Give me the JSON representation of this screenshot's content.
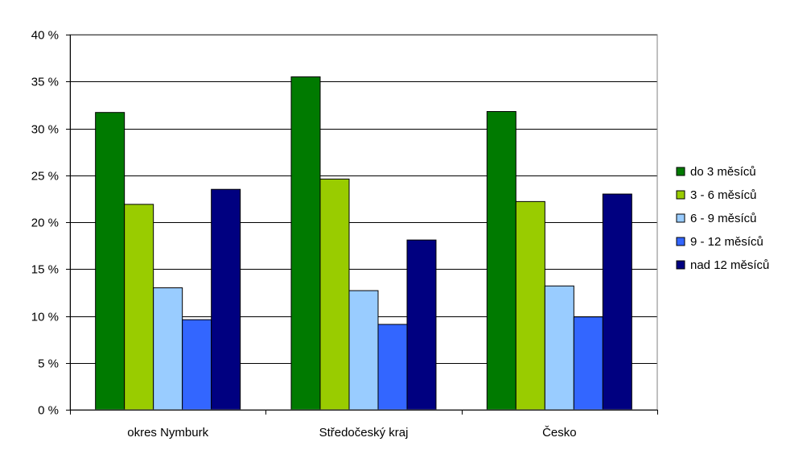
{
  "chart_data": {
    "type": "bar",
    "title": "",
    "xlabel": "",
    "ylabel": "",
    "categories": [
      "okres Nymburk",
      "Středočeský kraj",
      "Česko"
    ],
    "series": [
      {
        "name": "do 3 měsíců",
        "color": "#007a00",
        "values": [
          31.7,
          35.5,
          31.8
        ]
      },
      {
        "name": "3 - 6 měsíců",
        "color": "#99cc00",
        "values": [
          21.9,
          24.6,
          22.2
        ]
      },
      {
        "name": "6 - 9 měsíců",
        "color": "#99ccff",
        "values": [
          13.0,
          12.7,
          13.2
        ]
      },
      {
        "name": "9 - 12 měsíců",
        "color": "#3366ff",
        "values": [
          9.6,
          9.1,
          9.9
        ]
      },
      {
        "name": "nad 12 měsíců",
        "color": "#000080",
        "values": [
          23.5,
          18.1,
          23.0
        ]
      }
    ],
    "ylim": [
      0,
      40
    ],
    "yticks": [
      0,
      5,
      10,
      15,
      20,
      25,
      30,
      35,
      40
    ],
    "ytick_labels": [
      "0 %",
      "5 %",
      "10 %",
      "15 %",
      "20 %",
      "25 %",
      "30 %",
      "35 %",
      "40 %"
    ],
    "grid": true,
    "legend_position": "right"
  }
}
